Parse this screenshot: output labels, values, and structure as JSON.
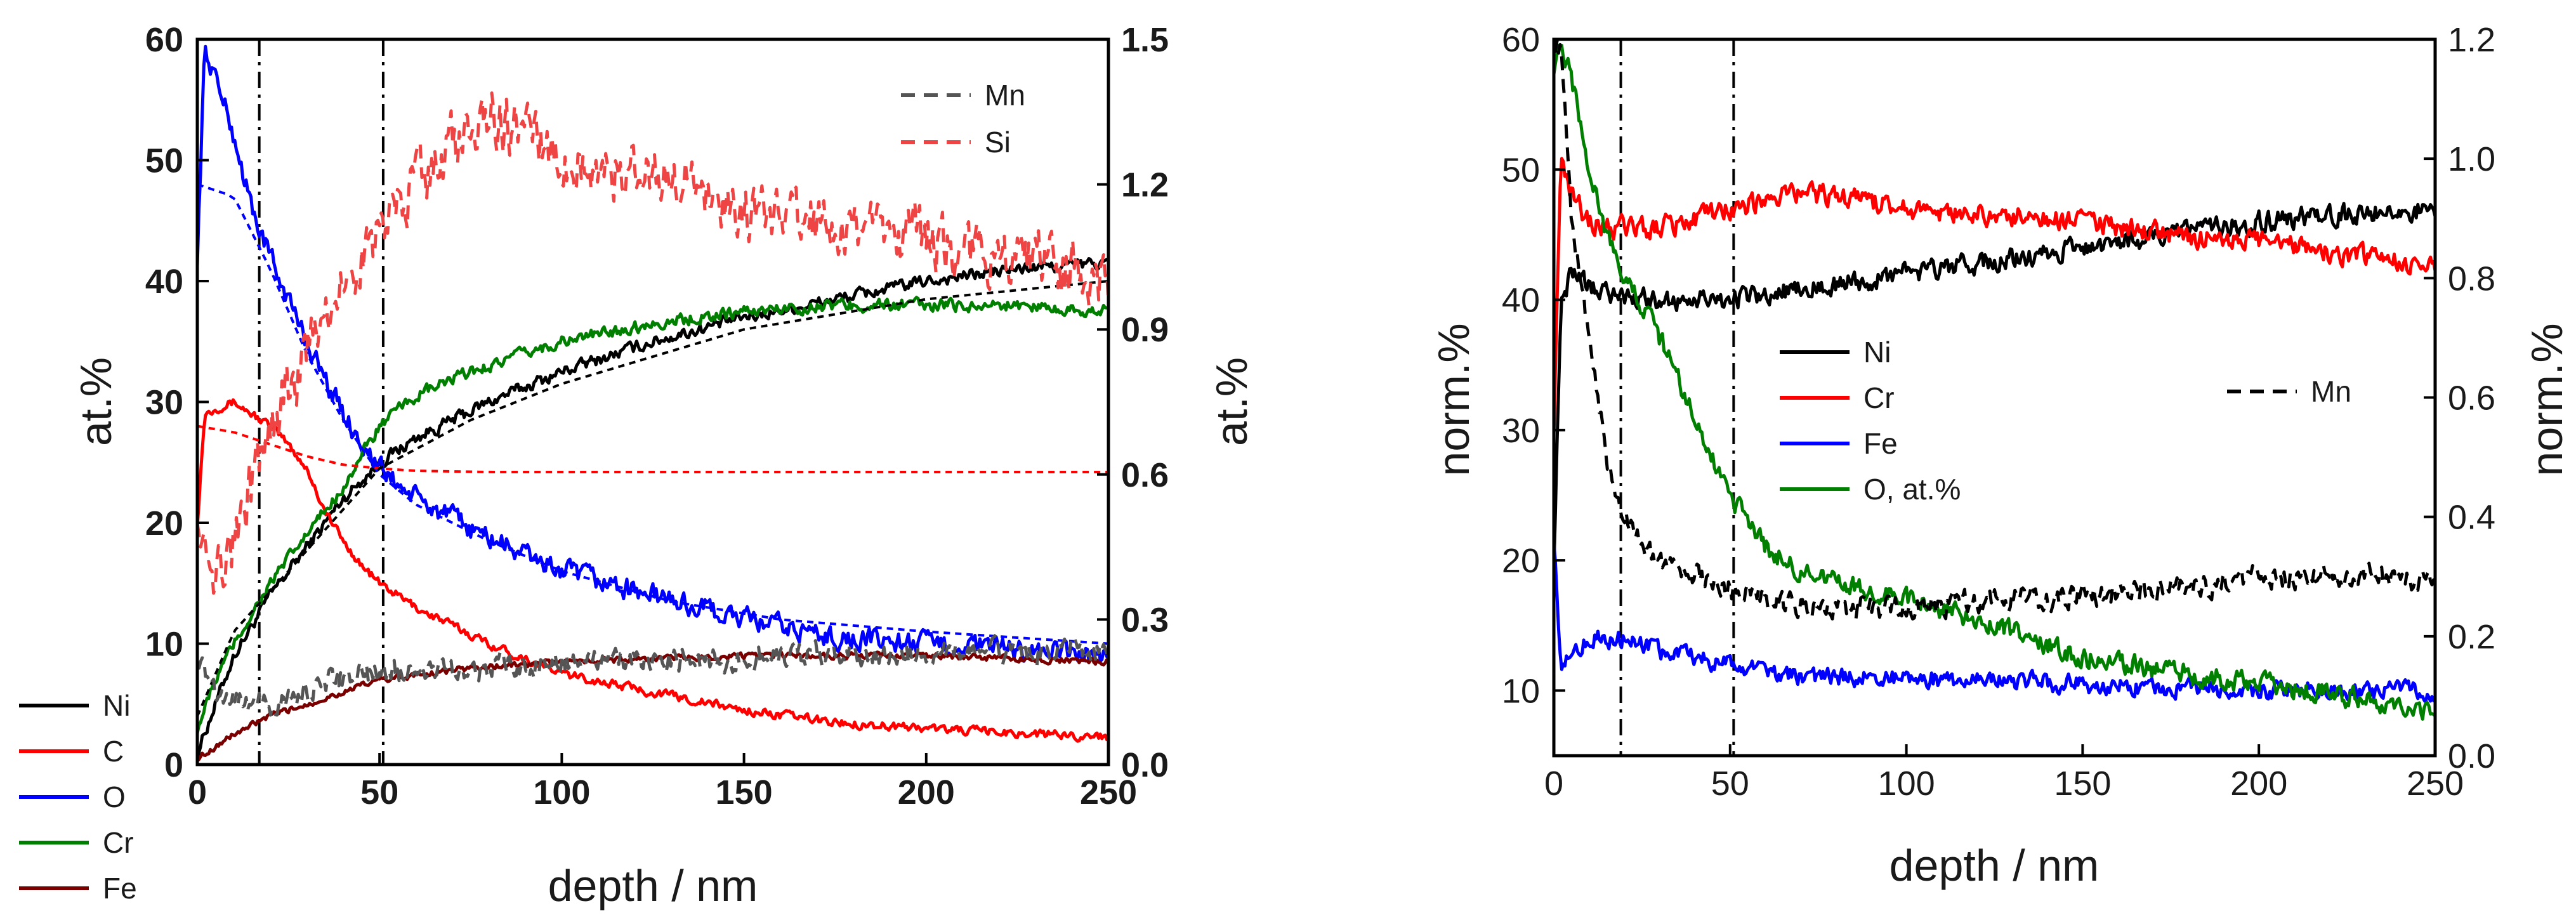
{
  "chart_data": [
    {
      "type": "line",
      "panel": "left",
      "xlabel": "depth / nm",
      "ylabel": "at.%",
      "y2label": "at.%",
      "xlim": [
        0,
        250
      ],
      "ylim": [
        0,
        60
      ],
      "y2lim": [
        0,
        1.5
      ],
      "xticks": [
        0,
        50,
        100,
        150,
        200,
        250
      ],
      "yticks": [
        0,
        10,
        20,
        30,
        40,
        50,
        60
      ],
      "y2ticks": [
        0.0,
        0.3,
        0.6,
        0.9,
        1.2,
        1.5
      ],
      "xtick_labels": [
        "0",
        "50",
        "100",
        "150",
        "200",
        "250"
      ],
      "ytick_labels": [
        "0",
        "10",
        "20",
        "30",
        "40",
        "50",
        "60"
      ],
      "y2tick_labels": [
        "0.0",
        "0.3",
        "0.6",
        "0.9",
        "1.2",
        "1.5"
      ],
      "vlines": [
        17,
        51
      ],
      "legend_left": [
        "Ni",
        "C",
        "O",
        "Cr",
        "Fe"
      ],
      "legend_right": [
        "Mn",
        "Si"
      ],
      "series": [
        {
          "name": "Ni",
          "color": "#000000",
          "style": "solid",
          "axis": "left",
          "noise": 0.5,
          "x": [
            0,
            5,
            10,
            20,
            30,
            40,
            50,
            60,
            70,
            80,
            100,
            125,
            150,
            175,
            200,
            225,
            250
          ],
          "y": [
            1,
            5,
            9,
            14,
            18,
            22,
            25,
            27,
            28.5,
            30,
            32.5,
            35,
            37,
            38.5,
            40,
            41,
            41.5
          ]
        },
        {
          "name": "C",
          "color": "#ff0000",
          "style": "solid",
          "axis": "left",
          "noise": 0.35,
          "x": [
            0,
            2,
            5,
            10,
            15,
            20,
            25,
            30,
            35,
            40,
            45,
            50,
            60,
            70,
            80,
            100,
            125,
            150,
            175,
            200,
            225,
            250
          ],
          "y": [
            20,
            29,
            29.5,
            30,
            29,
            28,
            26.5,
            24.5,
            21,
            18.5,
            16.5,
            15,
            13,
            11.5,
            10,
            7.5,
            6,
            4.5,
            3.5,
            3,
            2.6,
            2.3
          ]
        },
        {
          "name": "O",
          "color": "#0000ff",
          "style": "solid",
          "axis": "left",
          "noise": 0.9,
          "x": [
            0,
            2,
            5,
            10,
            15,
            20,
            30,
            40,
            50,
            60,
            75,
            100,
            125,
            150,
            175,
            200,
            225,
            250
          ],
          "y": [
            42,
            59,
            57,
            52,
            46,
            42,
            35,
            29,
            24.5,
            22,
            19.5,
            16,
            14,
            12,
            10.5,
            10,
            9.5,
            9
          ]
        },
        {
          "name": "Cr",
          "color": "#007f00",
          "style": "solid",
          "axis": "left",
          "noise": 0.5,
          "x": [
            0,
            5,
            10,
            20,
            30,
            40,
            50,
            60,
            75,
            100,
            125,
            150,
            175,
            200,
            225,
            250
          ],
          "y": [
            3,
            7,
            10,
            15,
            19,
            23,
            28,
            30.5,
            32.5,
            35,
            36.5,
            37.5,
            38,
            38,
            38,
            37.5
          ]
        },
        {
          "name": "Fe",
          "color": "#7a0000",
          "style": "solid",
          "axis": "left",
          "noise": 0.25,
          "x": [
            0,
            5,
            10,
            20,
            30,
            40,
            50,
            75,
            100,
            150,
            200,
            250
          ],
          "y": [
            0.5,
            1.5,
            2.5,
            4,
            5,
            6,
            7,
            8,
            8.5,
            9,
            9,
            8.5
          ]
        },
        {
          "name": "O fit",
          "color": "#0000ff",
          "style": "dashed-short",
          "axis": "left",
          "noise": 0,
          "x": [
            0,
            10,
            20,
            30,
            40,
            50,
            60,
            80,
            100,
            130,
            160,
            200,
            250
          ],
          "y": [
            48,
            47,
            41,
            34,
            28.5,
            24,
            21.5,
            18.5,
            16,
            13.5,
            12,
            11,
            10
          ]
        },
        {
          "name": "C fit",
          "color": "#ff0000",
          "style": "dashed-short",
          "axis": "left",
          "noise": 0,
          "x": [
            0,
            10,
            20,
            30,
            40,
            50,
            60,
            80,
            250
          ],
          "y": [
            28,
            27.5,
            26.5,
            25.5,
            24.8,
            24.5,
            24.3,
            24.2,
            24.2
          ]
        },
        {
          "name": "Ni fit",
          "color": "#000000",
          "style": "dashed-short",
          "axis": "left",
          "noise": 0,
          "x": [
            0,
            10,
            25,
            50,
            75,
            100,
            150,
            200,
            250
          ],
          "y": [
            4,
            11,
            16,
            24.5,
            28.5,
            31.5,
            36,
            38.5,
            40
          ]
        },
        {
          "name": "Mn",
          "color": "#555555",
          "style": "dashed",
          "axis": "right",
          "noise": 0.025,
          "x": [
            0,
            5,
            10,
            20,
            30,
            40,
            50,
            75,
            100,
            150,
            200,
            250
          ],
          "y": [
            0.22,
            0.15,
            0.14,
            0.12,
            0.15,
            0.18,
            0.19,
            0.2,
            0.21,
            0.22,
            0.23,
            0.24
          ]
        },
        {
          "name": "Si",
          "color": "#ee4444",
          "style": "dashed",
          "axis": "right",
          "noise": 0.06,
          "x": [
            0,
            5,
            10,
            20,
            30,
            40,
            50,
            60,
            70,
            80,
            90,
            100,
            125,
            150,
            175,
            200,
            225,
            250
          ],
          "y": [
            0.55,
            0.4,
            0.45,
            0.7,
            0.85,
            1.0,
            1.1,
            1.2,
            1.28,
            1.35,
            1.3,
            1.25,
            1.22,
            1.15,
            1.1,
            1.08,
            1.05,
            1.0
          ]
        }
      ]
    },
    {
      "type": "line",
      "panel": "right",
      "xlabel": "depth / nm",
      "ylabel": "norm.%",
      "y2label": "norm.%",
      "xlim": [
        0,
        250
      ],
      "ylim": [
        5,
        60
      ],
      "y2lim": [
        0,
        1.2
      ],
      "xticks": [
        0,
        50,
        100,
        150,
        200,
        250
      ],
      "yticks": [
        10,
        20,
        30,
        40,
        50,
        60
      ],
      "y2ticks": [
        0.0,
        0.2,
        0.4,
        0.6,
        0.8,
        1.0,
        1.2
      ],
      "xtick_labels": [
        "0",
        "50",
        "100",
        "150",
        "200",
        "250"
      ],
      "ytick_labels": [
        "10",
        "20",
        "30",
        "40",
        "50",
        "60"
      ],
      "y2tick_labels": [
        "0.0",
        "0.2",
        "0.4",
        "0.6",
        "0.8",
        "1.0",
        "1.2"
      ],
      "vlines": [
        19,
        51
      ],
      "legend_left": [
        "Ni",
        "Cr",
        "Fe",
        "O, at.%"
      ],
      "legend_right": [
        "Mn"
      ],
      "series": [
        {
          "name": "Ni",
          "color": "#000000",
          "style": "solid",
          "axis": "left",
          "noise": 0.8,
          "x": [
            0,
            2,
            5,
            10,
            20,
            30,
            50,
            75,
            100,
            125,
            150,
            175,
            200,
            225,
            250
          ],
          "y": [
            20,
            40,
            42,
            41,
            40,
            40,
            40,
            41,
            42,
            43,
            44,
            45,
            46,
            46.5,
            47
          ]
        },
        {
          "name": "Cr",
          "color": "#ff0000",
          "style": "solid",
          "axis": "left",
          "noise": 0.8,
          "x": [
            0,
            2,
            5,
            10,
            20,
            30,
            50,
            65,
            80,
            100,
            125,
            150,
            175,
            200,
            225,
            250
          ],
          "y": [
            30,
            50,
            48,
            46,
            45.5,
            45.5,
            47,
            48,
            48,
            47,
            46.5,
            46,
            45,
            44.5,
            43.5,
            42.5
          ]
        },
        {
          "name": "Fe",
          "color": "#0000ff",
          "style": "solid",
          "axis": "left",
          "noise": 0.7,
          "x": [
            0,
            2,
            5,
            10,
            20,
            30,
            50,
            75,
            100,
            150,
            200,
            250
          ],
          "y": [
            22,
            12,
            13,
            14,
            14,
            13,
            12,
            11,
            11,
            10.5,
            10,
            10
          ]
        },
        {
          "name": "O, at.%",
          "color": "#007f00",
          "style": "solid",
          "axis": "left",
          "noise": 0.8,
          "x": [
            0,
            2,
            5,
            10,
            15,
            20,
            30,
            40,
            50,
            60,
            75,
            100,
            125,
            150,
            175,
            200,
            225,
            250
          ],
          "y": [
            58,
            60,
            57,
            50,
            45,
            42,
            37,
            31,
            25,
            21,
            18.5,
            17,
            15,
            12.5,
            11.5,
            10.5,
            9.5,
            8.5
          ]
        },
        {
          "name": "Mn",
          "color": "#000000",
          "style": "dashed",
          "axis": "right",
          "noise": 0.02,
          "x": [
            0,
            2,
            5,
            10,
            15,
            20,
            30,
            40,
            50,
            60,
            75,
            100,
            125,
            150,
            175,
            200,
            225,
            250
          ],
          "y": [
            1.2,
            1.18,
            0.9,
            0.7,
            0.5,
            0.4,
            0.32,
            0.3,
            0.28,
            0.26,
            0.25,
            0.25,
            0.26,
            0.27,
            0.28,
            0.3,
            0.3,
            0.29
          ]
        }
      ]
    }
  ]
}
